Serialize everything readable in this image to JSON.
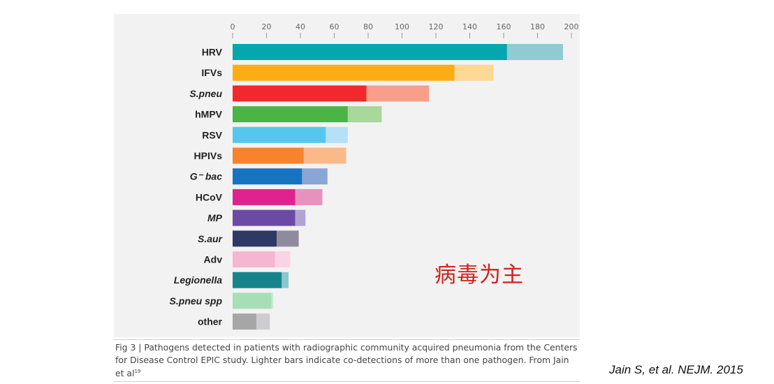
{
  "chart_data": {
    "type": "bar",
    "orientation": "horizontal",
    "stacked": true,
    "categories": [
      "HRV",
      "IFVs",
      "S.pneu",
      "hMPV",
      "RSV",
      "HPIVs",
      "G⁻ bac",
      "HCoV",
      "MP",
      "S.aur",
      "Adv",
      "Legionella",
      "S.pneu spp",
      "other"
    ],
    "italic_categories": [
      "S.pneu",
      "G⁻ bac",
      "MP",
      "S.aur",
      "Legionella",
      "S.pneu spp"
    ],
    "series": [
      {
        "values": [
          162,
          131,
          79,
          68,
          55,
          42,
          41,
          37,
          37,
          26,
          25,
          29,
          23,
          14
        ]
      },
      {
        "values": [
          33,
          23,
          37,
          20,
          13,
          25,
          15,
          16,
          6,
          13,
          9,
          4,
          1,
          8
        ]
      }
    ],
    "dark_colors": [
      "#04a7ad",
      "#fdad13",
      "#f3282b",
      "#4ab445",
      "#55c7ef",
      "#f9822c",
      "#1673c1",
      "#e0228e",
      "#6b4aa6",
      "#2e3a63",
      "#f6b5d0",
      "#17848c",
      "#a6dfb6",
      "#a6a6a6"
    ],
    "light_colors": [
      "#8fcbd1",
      "#fdd995",
      "#f99f89",
      "#a8d89a",
      "#b6e0f8",
      "#fbb98a",
      "#8aa6d6",
      "#e792be",
      "#b1a4d1",
      "#8f8a9c",
      "#fcd3e4",
      "#8bc8cd",
      "#c7ecd1",
      "#cdcdcf"
    ],
    "x_ticks": [
      0,
      20,
      40,
      60,
      80,
      100,
      120,
      140,
      160,
      180,
      200
    ],
    "xlim": [
      0,
      200
    ],
    "axis_position": "top"
  },
  "annotation": "病毒为主",
  "caption": {
    "text": "Fig 3 | Pathogens detected in patients with radiographic community acquired pneumonia from the Centers for Disease Control EPIC study. Lighter bars indicate co-detections of more than one pathogen. From Jain et al",
    "ref": "19"
  },
  "citation": "Jain S, et al. NEJM. 2015"
}
